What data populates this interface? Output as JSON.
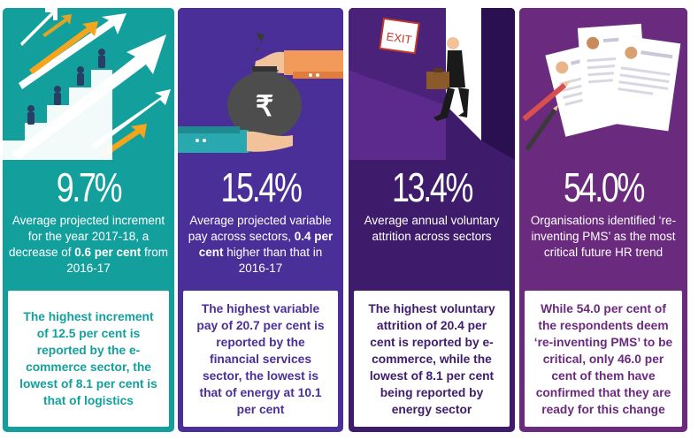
{
  "cards": [
    {
      "stat": "9.7%",
      "desc_parts": [
        "Average projected increment for the year 2017-18, a decrease of ",
        "0.6 per cent",
        " from 2016-17"
      ],
      "highlight": "The highest increment of 12.5 per cent is reported by the e-commerce sector, the lowest of 8.1 per cent is that of logistics",
      "illustration": "staircase-growth-arrows-icon",
      "color": "#13a09d"
    },
    {
      "stat": "15.4%",
      "desc_parts": [
        "Average projected variable pay across sectors, ",
        "0.4 per cent",
        " higher than that in 2016-17"
      ],
      "highlight": "The highest variable pay of 20.7 per cent is reported by the financial services sector, the lowest is that of energy at 10.1 per cent",
      "illustration": "rupee-money-bag-icon",
      "rupee_symbol": "₹",
      "color": "#4a2f98"
    },
    {
      "stat": "13.4%",
      "desc_parts": [
        "Average annual voluntary attrition across sectors",
        "",
        ""
      ],
      "highlight": "The highest voluntary attrition of 20.4 per cent is reported by e-commerce, while the lowest of 8.1 per cent being reported by energy sector",
      "illustration": "exit-door-icon",
      "exit_sign": "EXIT",
      "color": "#3e1c6b"
    },
    {
      "stat": "54.0%",
      "desc_parts": [
        "Organisations identified ‘re-inventing PMS’ as the most critical future HR trend",
        "",
        ""
      ],
      "highlight": "While 54.0 per cent of the respondents deem ‘re-inventing PMS’ to be critical, only 46.0 per cent of them have confirmed that they are ready for this change",
      "illustration": "resume-documents-icon",
      "color": "#6a2a7e"
    }
  ]
}
